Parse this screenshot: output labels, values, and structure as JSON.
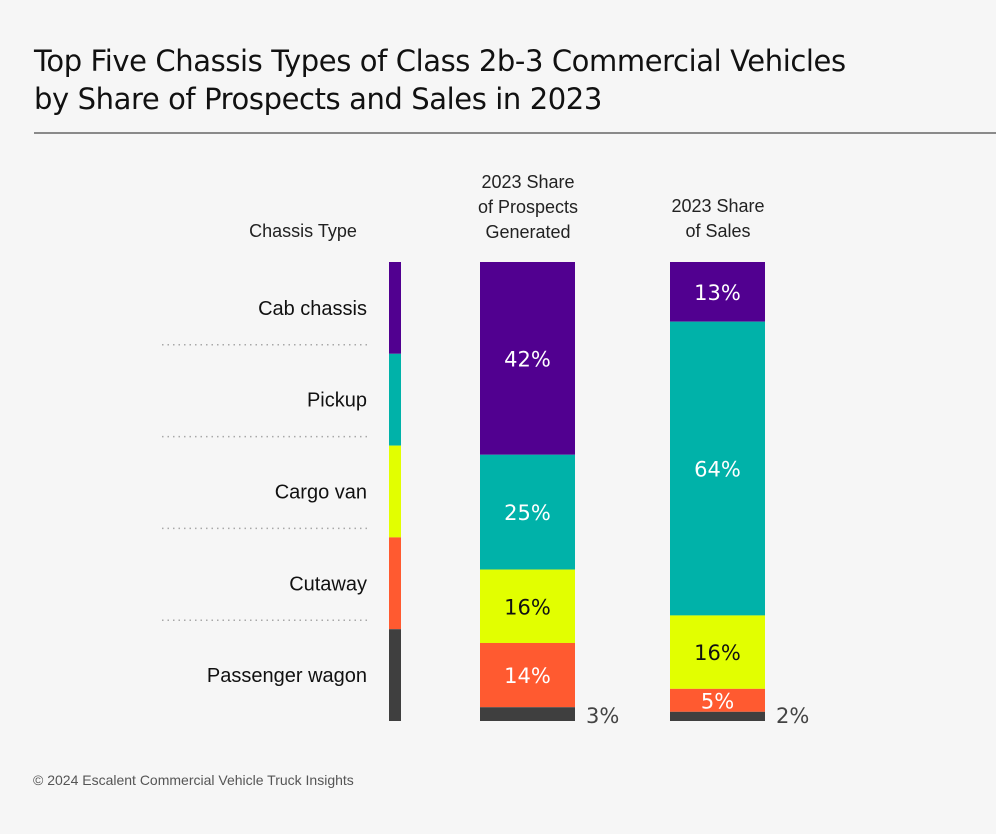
{
  "title_line1": "Top Five Chassis Types of Class 2b-3 Commercial Vehicles",
  "title_line2": "by Share of Prospects and Sales in 2023",
  "footer": "© 2024 Escalent Commercial Vehicle Truck Insights",
  "chart_data": {
    "type": "bar",
    "stacked": true,
    "title": "Top Five Chassis Types of Class 2b-3 Commercial Vehicles by Share of Prospects and Sales in 2023",
    "row_header": "Chassis Type",
    "categories": [
      "Cab chassis",
      "Pickup",
      "Cargo van",
      "Cutaway",
      "Passenger wagon"
    ],
    "colors": [
      "#510090",
      "#00b2a9",
      "#e2ff00",
      "#ff5a30",
      "#3f3f3f"
    ],
    "label_colors": [
      "#ffffff",
      "#ffffff",
      "#111111",
      "#ffffff",
      "#444444"
    ],
    "series": [
      {
        "name": "2023 Share of Prospects Generated",
        "header_lines": [
          "2023 Share",
          "of Prospects",
          "Generated"
        ],
        "values": [
          42,
          25,
          16,
          14,
          3
        ],
        "labels": [
          "42%",
          "25%",
          "16%",
          "14%",
          "3%"
        ]
      },
      {
        "name": "2023 Share of Sales",
        "header_lines": [
          "2023 Share",
          "of Sales"
        ],
        "values": [
          13,
          64,
          16,
          5,
          2
        ],
        "labels": [
          "13%",
          "64%",
          "16%",
          "5%",
          "2%"
        ]
      }
    ],
    "unit": "%",
    "ylim": [
      0,
      100
    ]
  }
}
